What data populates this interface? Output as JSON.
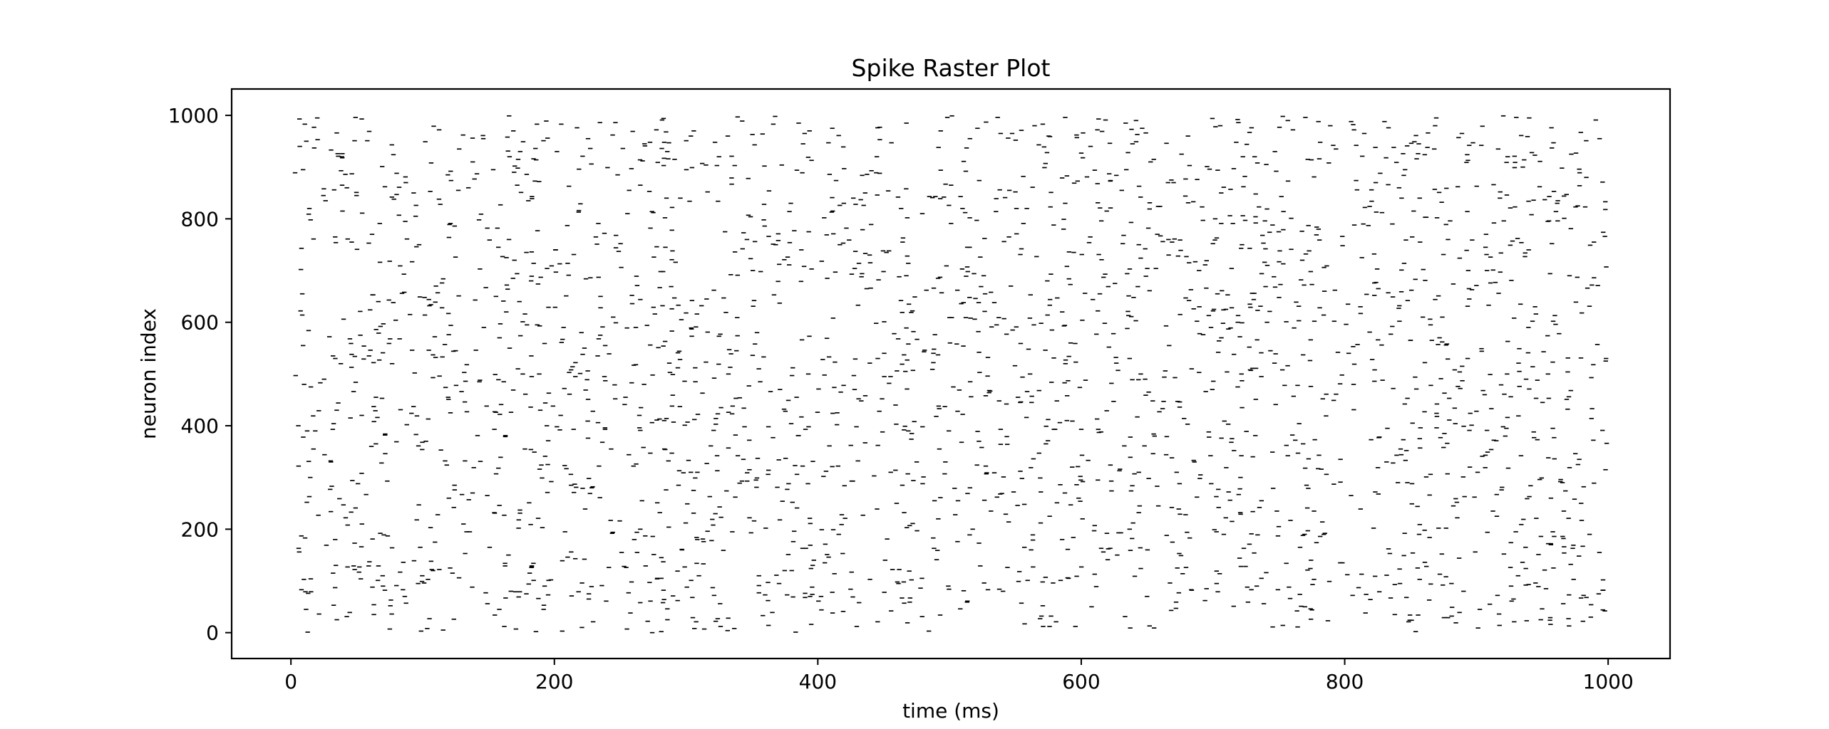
{
  "chart_data": {
    "type": "scatter",
    "marker": "short horizontal dash",
    "title": "Spike Raster Plot",
    "xlabel": "time (ms)",
    "ylabel": "neuron index",
    "xlim": [
      -45,
      1047
    ],
    "ylim": [
      -50,
      1051
    ],
    "xticks": [
      0,
      200,
      400,
      600,
      800,
      1000
    ],
    "yticks": [
      0,
      200,
      400,
      600,
      800,
      1000
    ],
    "xtick_labels": [
      "0",
      "200",
      "400",
      "600",
      "800",
      "1000"
    ],
    "ytick_labels": [
      "0",
      "200",
      "400",
      "600",
      "800",
      "1000"
    ],
    "grid": false,
    "marker_color": "#000000",
    "series": [
      {
        "spike_count": 2600,
        "time_range": [
          3,
          999
        ],
        "neuron_range": [
          0,
          999
        ],
        "points_sample": [
          [
            8,
            743
          ],
          [
            10,
            480
          ],
          [
            14,
            820
          ],
          [
            20,
            995
          ],
          [
            25,
            858
          ],
          [
            31,
            283
          ],
          [
            40,
            606
          ],
          [
            52,
            127
          ],
          [
            63,
            35
          ],
          [
            75,
            718
          ],
          [
            88,
            402
          ],
          [
            102,
            949
          ],
          [
            115,
            533
          ],
          [
            131,
            210
          ],
          [
            148,
            667
          ],
          [
            162,
            12
          ],
          [
            179,
            886
          ],
          [
            193,
            341
          ],
          [
            207,
            590
          ],
          [
            221,
            96
          ],
          [
            238,
            772
          ],
          [
            254,
            455
          ],
          [
            269,
            187
          ],
          [
            283,
            903
          ],
          [
            300,
            618
          ],
          [
            318,
            263
          ],
          [
            332,
            28
          ],
          [
            349,
            804
          ],
          [
            366,
            377
          ],
          [
            381,
            512
          ],
          [
            397,
            140
          ],
          [
            411,
            975
          ],
          [
            428,
            704
          ],
          [
            445,
            239
          ],
          [
            461,
            568
          ],
          [
            478,
            86
          ],
          [
            493,
            839
          ],
          [
            510,
            422
          ],
          [
            527,
            655
          ],
          [
            541,
            301
          ],
          [
            557,
            17
          ],
          [
            574,
            928
          ],
          [
            590,
            487
          ],
          [
            606,
            754
          ],
          [
            622,
            163
          ],
          [
            638,
            611
          ],
          [
            655,
            384
          ],
          [
            672,
            59
          ],
          [
            688,
            876
          ],
          [
            704,
            542
          ],
          [
            721,
            229
          ],
          [
            737,
            694
          ],
          [
            753,
            998
          ],
          [
            770,
            318
          ],
          [
            786,
            461
          ],
          [
            802,
            112
          ],
          [
            818,
            787
          ],
          [
            835,
            577
          ],
          [
            851,
            249
          ],
          [
            868,
            935
          ],
          [
            884,
            404
          ],
          [
            900,
            671
          ],
          [
            916,
            72
          ],
          [
            932,
            521
          ],
          [
            948,
            862
          ],
          [
            964,
            296
          ],
          [
            980,
            618
          ],
          [
            996,
            44
          ]
        ]
      }
    ]
  }
}
